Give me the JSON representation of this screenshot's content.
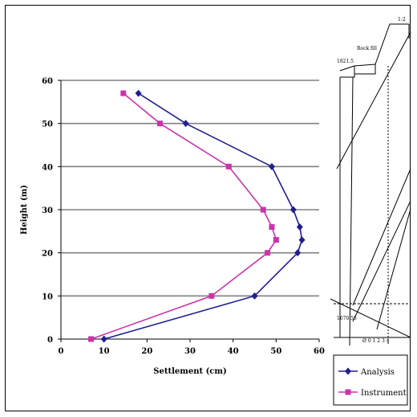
{
  "chart_data": {
    "type": "line",
    "orientation": "horizontal-x-values-vertical-y",
    "xlabel": "Settlement (cm)",
    "ylabel": "Height (m)",
    "xlim": [
      0,
      60
    ],
    "ylim": [
      0,
      60
    ],
    "xticks": [
      "0",
      "10",
      "20",
      "30",
      "40",
      "50",
      "60"
    ],
    "yticks": [
      "0",
      "10",
      "20",
      "30",
      "40",
      "50",
      "60"
    ],
    "grid": "horizontal",
    "legend_position": "bottom-right",
    "series": [
      {
        "name": "Analysis",
        "color": "#1f1f8f",
        "marker": "diamond",
        "points": [
          {
            "x": 10,
            "y": 0
          },
          {
            "x": 45,
            "y": 10
          },
          {
            "x": 55,
            "y": 20
          },
          {
            "x": 56,
            "y": 23
          },
          {
            "x": 55.5,
            "y": 26
          },
          {
            "x": 54,
            "y": 30
          },
          {
            "x": 49,
            "y": 40
          },
          {
            "x": 29,
            "y": 50
          },
          {
            "x": 18,
            "y": 57
          }
        ]
      },
      {
        "name": "Instrument",
        "color": "#cc33aa",
        "marker": "square",
        "points": [
          {
            "x": 7,
            "y": 0
          },
          {
            "x": 35,
            "y": 10
          },
          {
            "x": 48,
            "y": 20
          },
          {
            "x": 50,
            "y": 23
          },
          {
            "x": 49,
            "y": 26
          },
          {
            "x": 47,
            "y": 30
          },
          {
            "x": 39,
            "y": 40
          },
          {
            "x": 23,
            "y": 50
          },
          {
            "x": 14.5,
            "y": 57
          }
        ]
      }
    ]
  },
  "drawing": {
    "labels": [
      "1:2",
      "1821.5",
      "Rock fill",
      "1670.55",
      "Ø 0 1 2 3 4"
    ]
  }
}
